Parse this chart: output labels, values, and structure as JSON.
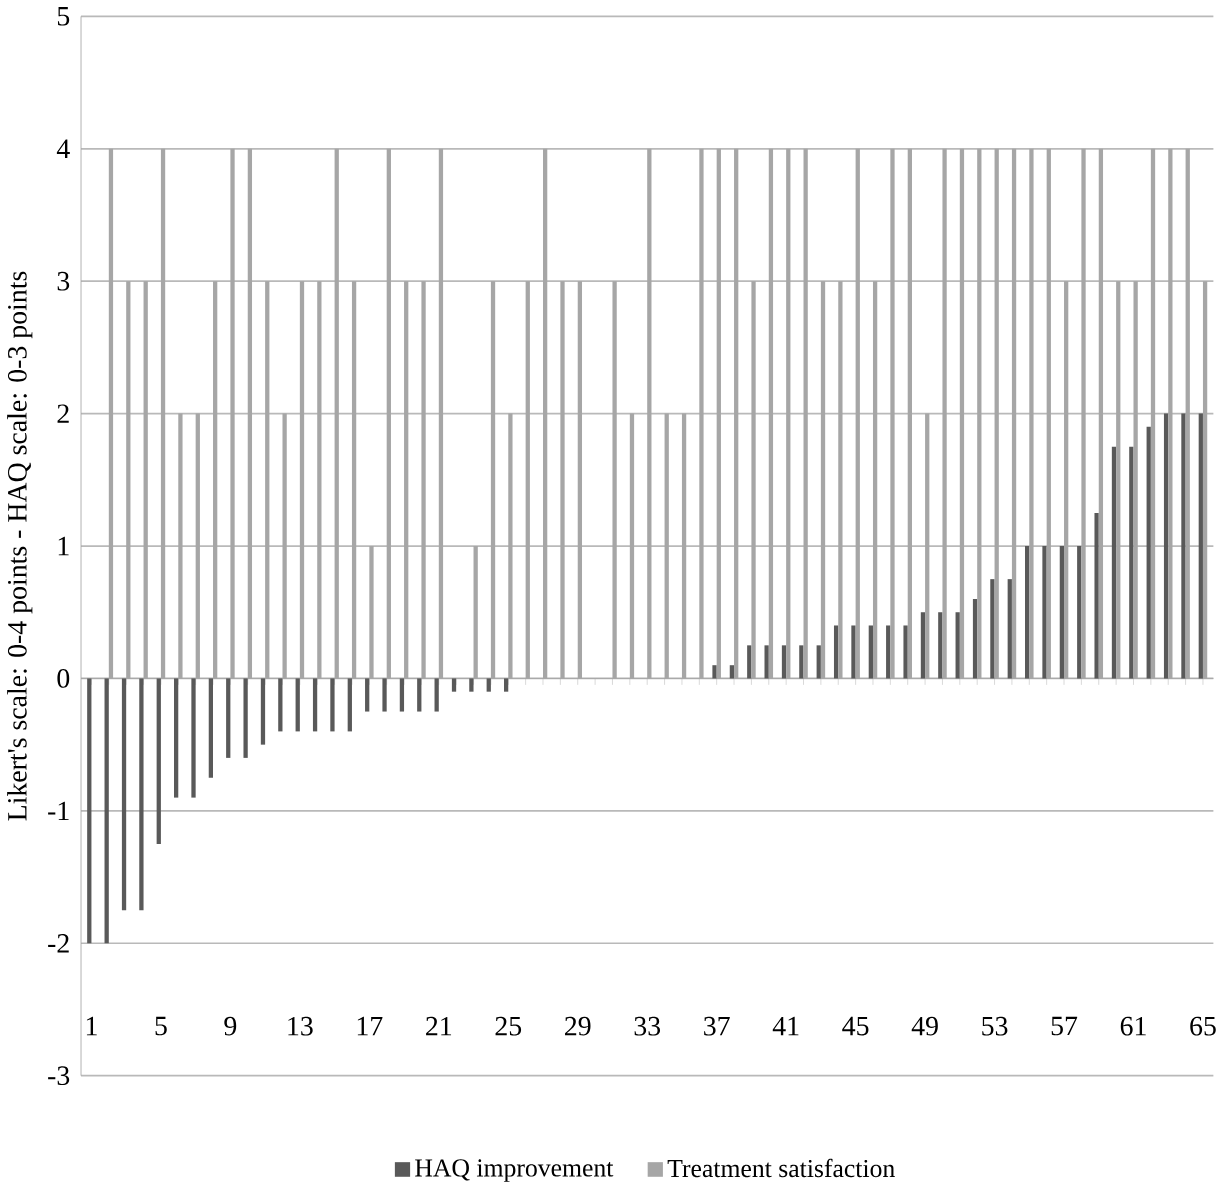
{
  "chart_data": {
    "type": "bar",
    "ylabel": "Likert's scale: 0-4 points - HAQ scale: 0-3 points",
    "categories": [
      "1",
      null,
      null,
      null,
      "5",
      null,
      null,
      null,
      "9",
      null,
      null,
      null,
      "13",
      null,
      null,
      null,
      "17",
      null,
      null,
      null,
      "21",
      null,
      null,
      null,
      "25",
      null,
      null,
      null,
      "29",
      null,
      null,
      null,
      "33",
      null,
      null,
      null,
      "37",
      null,
      null,
      null,
      "41",
      null,
      null,
      null,
      "45",
      null,
      null,
      null,
      "49",
      null,
      null,
      null,
      "53",
      null,
      null,
      null,
      "57",
      null,
      null,
      null,
      "61",
      null,
      null,
      null,
      "65"
    ],
    "series": [
      {
        "name": "HAQ improvement",
        "color": "#595959",
        "values": [
          -2,
          -2,
          -1.75,
          -1.75,
          -1.25,
          -0.9,
          -0.9,
          -0.75,
          -0.6,
          -0.6,
          -0.5,
          -0.4,
          -0.4,
          -0.4,
          -0.4,
          -0.4,
          -0.25,
          -0.25,
          -0.25,
          -0.25,
          -0.25,
          -0.1,
          -0.1,
          -0.1,
          -0.1,
          0,
          0,
          0,
          0,
          0,
          0,
          0,
          0,
          0,
          0,
          0,
          0.1,
          0.1,
          0.25,
          0.25,
          0.25,
          0.25,
          0.25,
          0.4,
          0.4,
          0.4,
          0.4,
          0.4,
          0.5,
          0.5,
          0.5,
          0.6,
          0.75,
          0.75,
          1,
          1,
          1,
          1,
          1.25,
          1.75,
          1.75,
          1.9,
          2,
          2,
          2
        ]
      },
      {
        "name": "Treatment satisfaction",
        "color": "#a6a6a6",
        "values": [
          0,
          4,
          3,
          3,
          4,
          2,
          2,
          3,
          4,
          4,
          3,
          2,
          3,
          3,
          4,
          3,
          1,
          4,
          3,
          3,
          4,
          0,
          1,
          3,
          2,
          3,
          4,
          3,
          3,
          0,
          3,
          2,
          4,
          2,
          2,
          4,
          4,
          4,
          3,
          4,
          4,
          4,
          3,
          3,
          4,
          3,
          4,
          4,
          2,
          4,
          4,
          4,
          4,
          4,
          4,
          4,
          3,
          4,
          4,
          3,
          3,
          4,
          4,
          4,
          3
        ]
      }
    ],
    "ylim": [
      -3,
      5
    ],
    "yticks": [
      -3,
      -2,
      -1,
      0,
      1,
      2,
      3,
      4,
      5
    ],
    "grid": "y",
    "legend": "bottom"
  }
}
